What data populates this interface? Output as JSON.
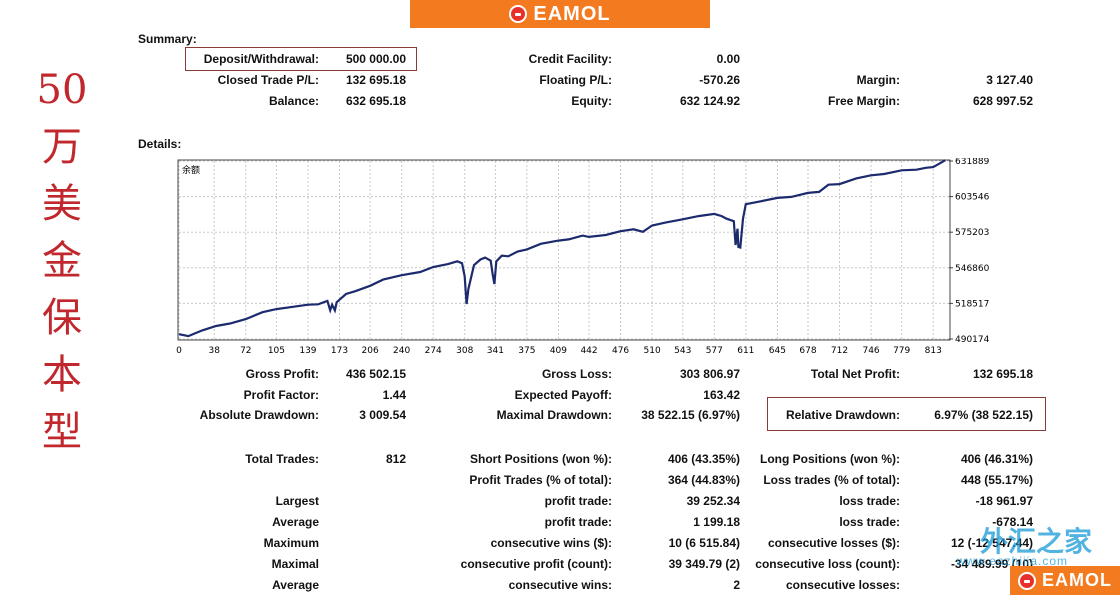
{
  "banner": {
    "logo_text": "EAMOL"
  },
  "corner_logo": {
    "logo_text": "EAMOL"
  },
  "side_title": [
    "50",
    "万",
    "美",
    "金",
    "保",
    "本",
    "型"
  ],
  "summary": {
    "title": "Summary:",
    "deposit_label": "Deposit/Withdrawal:",
    "deposit_value": "500 000.00",
    "closed_label": "Closed Trade P/L:",
    "closed_value": "132 695.18",
    "balance_label": "Balance:",
    "balance_value": "632 695.18",
    "credit_label": "Credit Facility:",
    "credit_value": "0.00",
    "floating_label": "Floating P/L:",
    "floating_value": "-570.26",
    "equity_label": "Equity:",
    "equity_value": "632 124.92",
    "margin_label": "Margin:",
    "margin_value": "3 127.40",
    "free_margin_label": "Free Margin:",
    "free_margin_value": "628 997.52"
  },
  "details": {
    "title": "Details:"
  },
  "chart_data": {
    "type": "line",
    "title": "余额",
    "x_ticks": [
      "0",
      "38",
      "72",
      "105",
      "139",
      "173",
      "206",
      "240",
      "274",
      "308",
      "341",
      "375",
      "409",
      "442",
      "476",
      "510",
      "543",
      "577",
      "611",
      "645",
      "678",
      "712",
      "746",
      "779",
      "813"
    ],
    "y_ticks": [
      "631889",
      "603546",
      "575203",
      "546860",
      "518517",
      "490174"
    ],
    "ylim": [
      490174,
      631889
    ],
    "xlim": [
      0,
      830
    ],
    "grid": true,
    "line_color": "#1c2a6e",
    "series": [
      {
        "x": [
          0,
          10,
          25,
          40,
          55,
          72,
          90,
          105,
          120,
          139,
          150,
          160,
          163,
          165,
          168,
          170,
          173,
          180,
          190,
          206,
          220,
          240,
          260,
          274,
          290,
          300,
          305,
          308,
          309,
          310,
          312,
          318,
          325,
          330,
          336,
          338,
          340,
          342,
          348,
          355,
          365,
          375,
          390,
          409,
          420,
          435,
          442,
          460,
          476,
          490,
          500,
          510,
          525,
          543,
          560,
          577,
          585,
          590,
          598,
          600,
          602,
          603,
          605,
          608,
          611,
          625,
          645,
          660,
          678,
          690,
          700,
          712,
          730,
          746,
          760,
          779,
          795,
          805,
          813,
          820,
          826
        ],
        "y": [
          494000,
          492500,
          497000,
          500500,
          502500,
          506000,
          511500,
          514000,
          515500,
          517500,
          517800,
          520500,
          513000,
          517500,
          513000,
          519500,
          521500,
          526000,
          528200,
          532500,
          537500,
          541000,
          543500,
          547500,
          549800,
          552000,
          550500,
          540000,
          528000,
          518000,
          530000,
          549000,
          553500,
          555000,
          552500,
          542000,
          534000,
          552000,
          556500,
          556000,
          559800,
          561500,
          566000,
          568500,
          569500,
          572500,
          571500,
          573000,
          576000,
          577500,
          575500,
          580500,
          583000,
          585500,
          588000,
          589800,
          588000,
          586000,
          584000,
          565000,
          578000,
          563500,
          563000,
          586000,
          597500,
          599500,
          602500,
          603300,
          606500,
          607300,
          613000,
          613500,
          618000,
          620500,
          621500,
          624500,
          625000,
          626500,
          627000,
          630000,
          632500
        ]
      }
    ]
  },
  "stats": {
    "gross_profit_label": "Gross Profit:",
    "gross_profit_value": "436 502.15",
    "profit_factor_label": "Profit Factor:",
    "profit_factor_value": "1.44",
    "abs_dd_label": "Absolute Drawdown:",
    "abs_dd_value": "3 009.54",
    "gross_loss_label": "Gross Loss:",
    "gross_loss_value": "303 806.97",
    "exp_payoff_label": "Expected Payoff:",
    "exp_payoff_value": "163.42",
    "max_dd_label": "Maximal Drawdown:",
    "max_dd_value": "38 522.15 (6.97%)",
    "net_profit_label": "Total Net Profit:",
    "net_profit_value": "132 695.18",
    "rel_dd_label": "Relative Drawdown:",
    "rel_dd_value": "6.97% (38 522.15)",
    "total_trades_label": "Total Trades:",
    "total_trades_value": "812",
    "largest_label": "Largest",
    "average_label": "Average",
    "maximum_label": "Maximum",
    "maximal_label": "Maximal",
    "average2_label": "Average",
    "short_label": "Short Positions (won %):",
    "short_value": "406 (43.35%)",
    "profit_trades_label": "Profit Trades (% of total):",
    "profit_trades_value": "364 (44.83%)",
    "largest_profit_label": "profit trade:",
    "largest_profit_value": "39 252.34",
    "avg_profit_label": "profit trade:",
    "avg_profit_value": "1 199.18",
    "cons_wins_label": "consecutive wins ($):",
    "cons_wins_value": "10 (6 515.84)",
    "cons_profit_label": "consecutive profit (count):",
    "cons_profit_value": "39 349.79 (2)",
    "avg_cons_wins_label": "consecutive wins:",
    "avg_cons_wins_value": "2",
    "long_label": "Long Positions (won %):",
    "long_value": "406 (46.31%)",
    "loss_trades_label": "Loss trades (% of total):",
    "loss_trades_value": "448 (55.17%)",
    "largest_loss_label": "loss trade:",
    "largest_loss_value": "-18 961.97",
    "avg_loss_label": "loss trade:",
    "avg_loss_value": "-678.14",
    "cons_losses_label": "consecutive losses ($):",
    "cons_losses_value": "12 (-12 547.44)",
    "cons_loss_label": "consecutive loss (count):",
    "cons_loss_value": "-34 489.99 (10)",
    "avg_cons_losses_label": "consecutive losses:"
  },
  "watermark": {
    "cn": "外汇之家",
    "url": "www.eazhijia.com"
  }
}
